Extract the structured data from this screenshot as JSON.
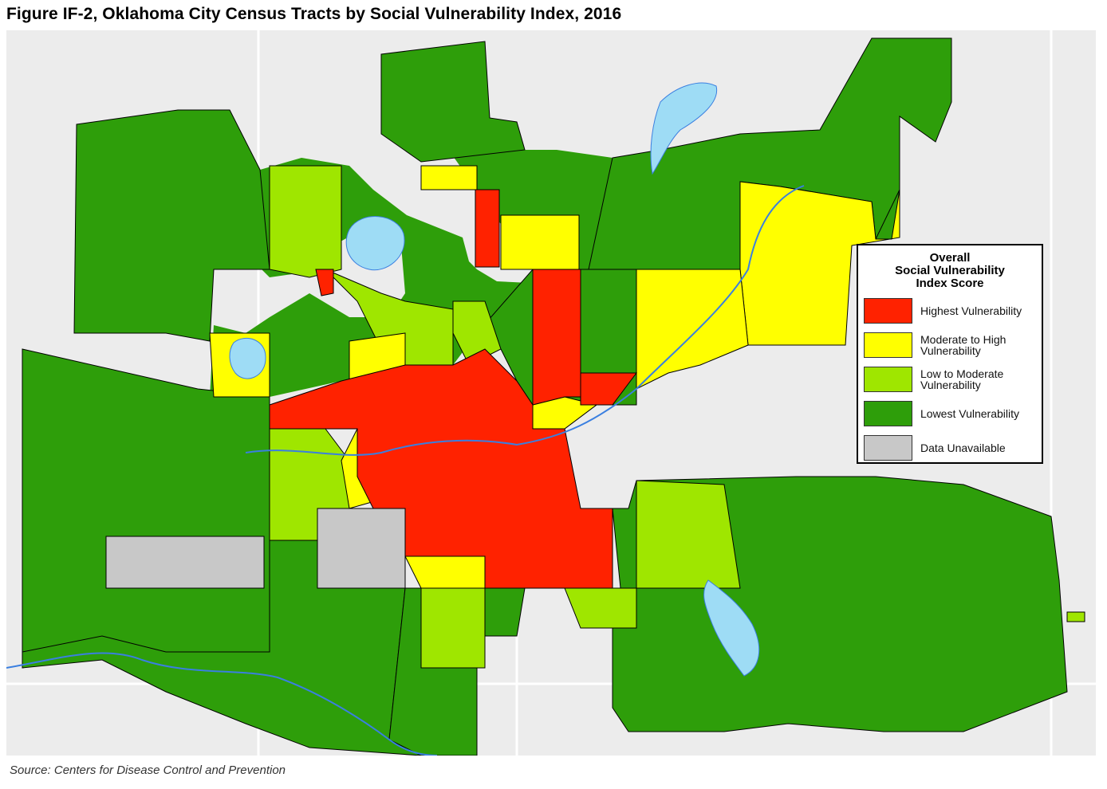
{
  "title": "Figure IF-2, Oklahoma City Census Tracts by Social Vulnerability Index, 2016",
  "source": "Source: Centers for Disease Control and Prevention",
  "legend": {
    "title_lines": [
      "Overall",
      "Social Vulnerability",
      "Index Score"
    ],
    "items": [
      {
        "label": "Highest Vulnerability",
        "color": "#ff2200"
      },
      {
        "label": "Moderate to High Vulnerability",
        "color": "#ffff00"
      },
      {
        "label": "Low to Moderate Vulnerability",
        "color": "#9fe600"
      },
      {
        "label": "Lowest Vulnerability",
        "color": "#2e9e0a"
      },
      {
        "label": "Data Unavailable",
        "color": "#c8c8c8"
      }
    ]
  },
  "colors": {
    "background": "#ececec",
    "water": "#9edcf5",
    "river": "#3a7fe0",
    "roads": "#ffffff"
  }
}
